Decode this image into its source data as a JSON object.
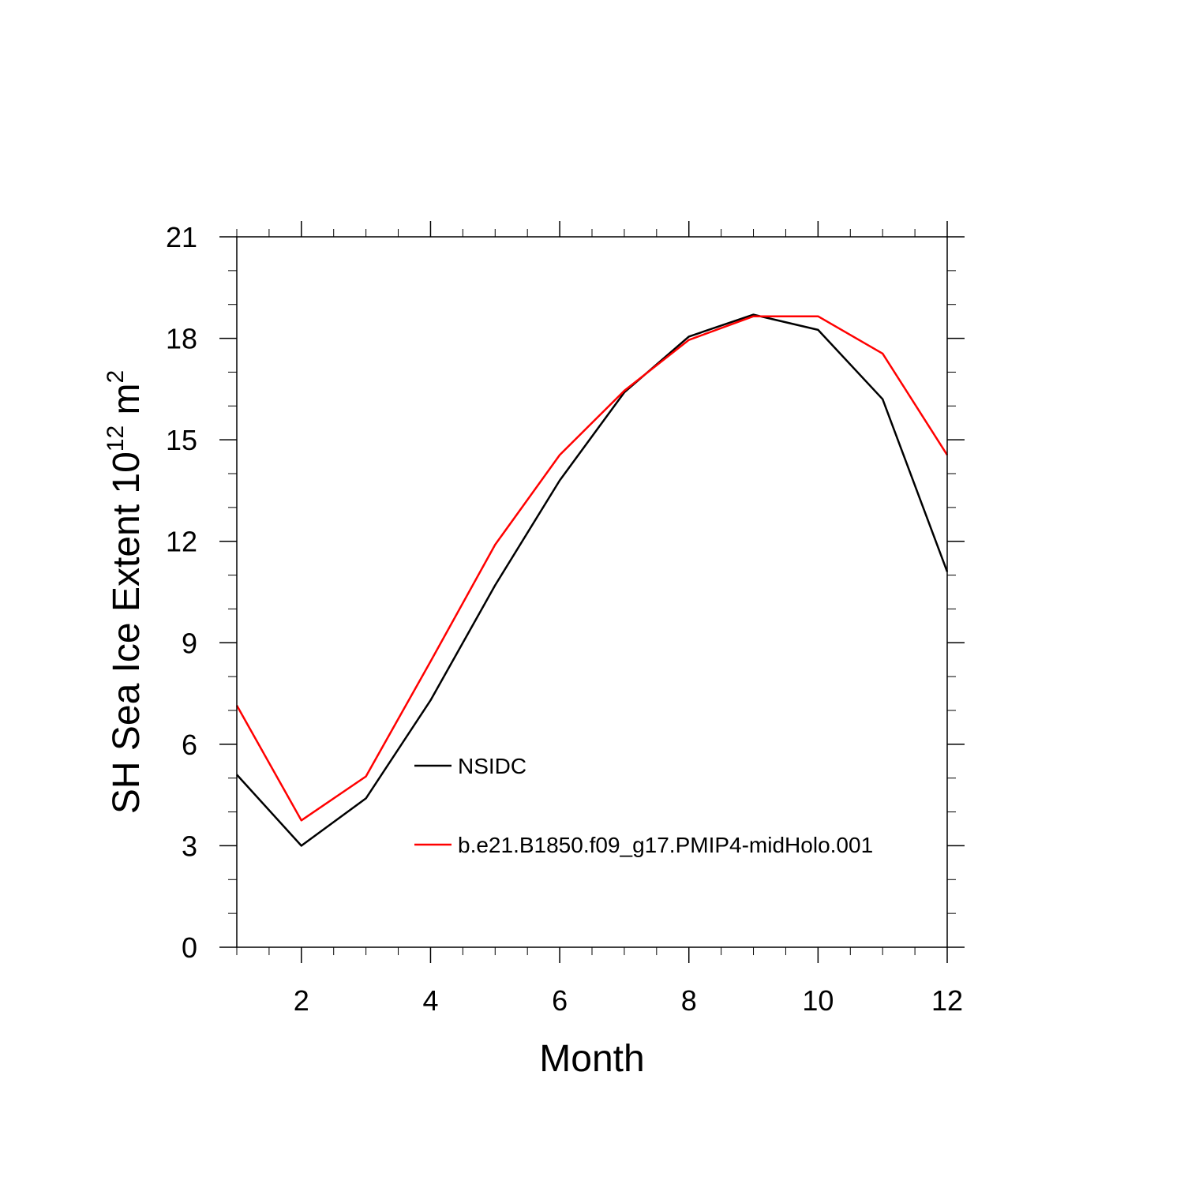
{
  "chart_data": {
    "type": "line",
    "title": "",
    "xlabel": "Month",
    "ylabel": {
      "main": "SH Sea Ice Extent 10",
      "exponent": "12",
      "unit": "m",
      "unit_exponent": "2"
    },
    "xlim": [
      1,
      12
    ],
    "ylim": [
      0,
      21
    ],
    "x_ticks": [
      2,
      4,
      6,
      8,
      10,
      12
    ],
    "x_tick_labels": [
      "2",
      "4",
      "6",
      "8",
      "10",
      "12"
    ],
    "y_ticks": [
      0,
      3,
      6,
      9,
      12,
      15,
      18,
      21
    ],
    "y_tick_labels": [
      "0",
      "3",
      "6",
      "9",
      "12",
      "15",
      "18",
      "21"
    ],
    "grid": false,
    "legend_position": "center",
    "x": [
      1,
      2,
      3,
      4,
      5,
      6,
      7,
      8,
      9,
      10,
      11,
      12
    ],
    "series": [
      {
        "name": "NSIDC",
        "color": "#000000",
        "values": [
          5.1,
          3.0,
          4.4,
          7.3,
          10.7,
          13.8,
          16.4,
          18.05,
          18.7,
          18.25,
          16.2,
          11.1
        ]
      },
      {
        "name": "b.e21.B1850.f09_g17.PMIP4-midHolo.001",
        "color": "#ff0000",
        "values": [
          7.15,
          3.75,
          5.05,
          8.45,
          11.9,
          14.55,
          16.45,
          17.95,
          18.65,
          18.65,
          17.55,
          14.55
        ]
      }
    ]
  }
}
